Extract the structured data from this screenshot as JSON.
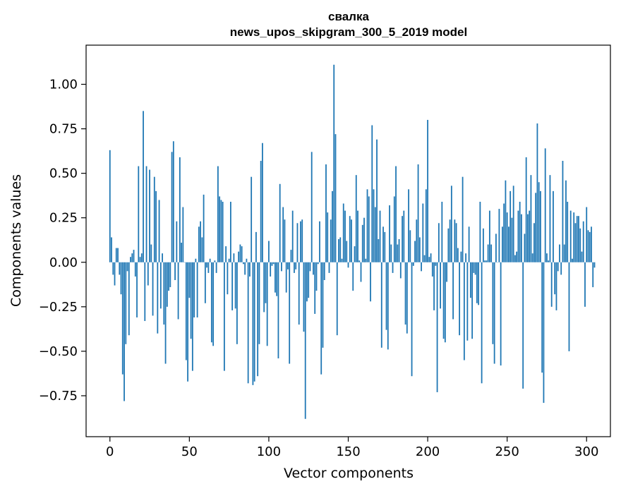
{
  "chart_data": {
    "type": "bar",
    "title": "свалка",
    "subtitle": "news_upos_skipgram_300_5_2019 model",
    "xlabel": "Vector components",
    "ylabel": "Components values",
    "xlim": [
      -15,
      315
    ],
    "ylim": [
      -0.98,
      1.22
    ],
    "xticks": [
      0,
      50,
      100,
      150,
      200,
      250,
      300
    ],
    "xtick_labels": [
      "0",
      "50",
      "100",
      "150",
      "200",
      "250",
      "300"
    ],
    "yticks": [
      1.0,
      0.75,
      0.5,
      0.25,
      0.0,
      -0.25,
      -0.5,
      -0.75
    ],
    "ytick_labels": [
      "1.00",
      "0.75",
      "0.50",
      "0.25",
      "0.00",
      "−0.25",
      "−0.50",
      "−0.75"
    ],
    "bar_color": "#1f77b4",
    "bar_width": 0.8,
    "values": [
      0.63,
      0.14,
      -0.07,
      -0.13,
      0.08,
      0.08,
      -0.07,
      -0.18,
      -0.63,
      -0.78,
      -0.46,
      -0.05,
      -0.41,
      0.03,
      0.05,
      0.07,
      -0.08,
      -0.31,
      0.54,
      0.03,
      0.05,
      0.85,
      -0.33,
      0.54,
      -0.13,
      0.52,
      0.1,
      -0.3,
      0.48,
      0.4,
      -0.4,
      0.35,
      -0.26,
      0.05,
      -0.35,
      -0.57,
      -0.25,
      -0.16,
      -0.14,
      0.62,
      0.68,
      -0.1,
      0.23,
      -0.32,
      0.59,
      0.11,
      0.31,
      0.0,
      -0.55,
      -0.67,
      -0.2,
      -0.43,
      -0.61,
      -0.31,
      0.02,
      -0.31,
      0.2,
      0.23,
      0.14,
      0.38,
      -0.23,
      -0.03,
      -0.06,
      0.02,
      -0.45,
      -0.47,
      0.01,
      -0.06,
      0.54,
      0.37,
      0.35,
      0.34,
      -0.61,
      0.09,
      -0.18,
      0.02,
      0.34,
      -0.27,
      0.05,
      -0.26,
      -0.46,
      0.06,
      0.1,
      0.09,
      -0.01,
      -0.07,
      0.02,
      -0.68,
      -0.08,
      0.48,
      -0.69,
      -0.67,
      0.17,
      -0.64,
      -0.46,
      0.57,
      0.67,
      -0.28,
      -0.23,
      -0.47,
      0.12,
      -0.08,
      -0.02,
      -0.01,
      -0.17,
      -0.19,
      -0.54,
      0.44,
      -0.05,
      0.31,
      0.24,
      -0.17,
      -0.04,
      -0.57,
      0.07,
      0.29,
      -0.06,
      -0.04,
      0.22,
      -0.35,
      0.23,
      0.24,
      -0.39,
      -0.88,
      -0.22,
      -0.2,
      -0.05,
      0.62,
      -0.07,
      -0.29,
      -0.16,
      -0.01,
      0.23,
      -0.63,
      -0.48,
      -0.1,
      0.55,
      0.28,
      -0.06,
      0.24,
      0.4,
      1.11,
      0.72,
      -0.41,
      0.13,
      0.14,
      0.02,
      0.33,
      0.29,
      0.12,
      -0.03,
      0.26,
      0.24,
      -0.16,
      0.09,
      0.49,
      0.29,
      0.01,
      -0.11,
      0.21,
      0.25,
      0.02,
      0.41,
      0.37,
      -0.22,
      0.77,
      0.41,
      0.31,
      0.69,
      0.13,
      0.29,
      -0.48,
      0.2,
      0.17,
      -0.38,
      -0.49,
      0.32,
      0.1,
      -0.06,
      0.37,
      0.54,
      0.1,
      0.13,
      -0.09,
      0.26,
      0.29,
      -0.35,
      -0.4,
      0.41,
      0.18,
      -0.64,
      -0.02,
      0.12,
      0.24,
      0.55,
      0.14,
      -0.05,
      0.33,
      0.04,
      0.41,
      0.8,
      0.03,
      0.05,
      -0.08,
      -0.27,
      -0.02,
      -0.73,
      0.22,
      -0.26,
      0.34,
      -0.43,
      -0.45,
      -0.11,
      0.19,
      0.24,
      0.43,
      -0.32,
      0.24,
      0.22,
      0.08,
      -0.41,
      0.06,
      0.48,
      -0.55,
      0.05,
      -0.44,
      0.2,
      -0.2,
      -0.43,
      -0.06,
      -0.07,
      -0.23,
      -0.24,
      0.34,
      -0.68,
      0.19,
      0.01,
      0.01,
      0.1,
      0.29,
      0.1,
      -0.46,
      -0.57,
      0.16,
      0.0,
      0.3,
      -0.58,
      0.2,
      0.33,
      0.46,
      0.28,
      0.2,
      0.4,
      0.25,
      0.43,
      0.04,
      0.06,
      0.29,
      0.34,
      0.27,
      -0.71,
      0.16,
      0.59,
      0.27,
      0.29,
      0.49,
      0.05,
      0.22,
      0.39,
      0.78,
      0.45,
      0.4,
      -0.62,
      -0.79,
      0.64,
      0.05,
      0.01,
      0.49,
      -0.25,
      0.4,
      -0.18,
      -0.27,
      -0.05,
      0.1,
      -0.07,
      0.57,
      0.1,
      0.46,
      0.34,
      -0.5,
      0.29,
      0.02,
      0.28,
      0.22,
      0.26,
      0.26,
      0.19,
      0.06,
      0.23,
      -0.25,
      0.31,
      0.18,
      0.17,
      0.2,
      -0.14,
      -0.03
    ]
  }
}
